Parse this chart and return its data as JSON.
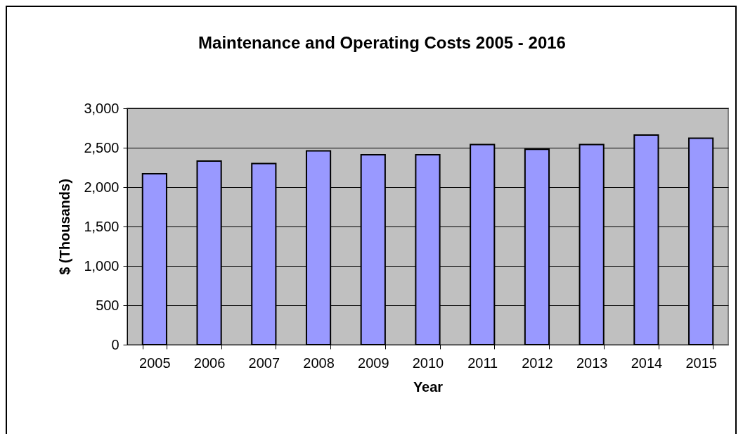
{
  "chart_data": {
    "type": "bar",
    "title": "Maintenance and Operating Costs 2005 - 2016",
    "xlabel": "Year",
    "ylabel": "$ (Thousands)",
    "categories": [
      "2005",
      "2006",
      "2007",
      "2008",
      "2009",
      "2010",
      "2011",
      "2012",
      "2013",
      "2014",
      "2015"
    ],
    "values": [
      2170,
      2330,
      2300,
      2460,
      2410,
      2410,
      2540,
      2480,
      2540,
      2660,
      2620
    ],
    "color": "#9999ff",
    "ylim": [
      0,
      3000
    ],
    "yticks": [
      {
        "value": 0,
        "label": "0"
      },
      {
        "value": 500,
        "label": "500"
      },
      {
        "value": 1000,
        "label": "1,000"
      },
      {
        "value": 1500,
        "label": "1,500"
      },
      {
        "value": 2000,
        "label": "2,000"
      },
      {
        "value": 2500,
        "label": "2,500"
      },
      {
        "value": 3000,
        "label": "3,000"
      }
    ],
    "grid": "y"
  }
}
